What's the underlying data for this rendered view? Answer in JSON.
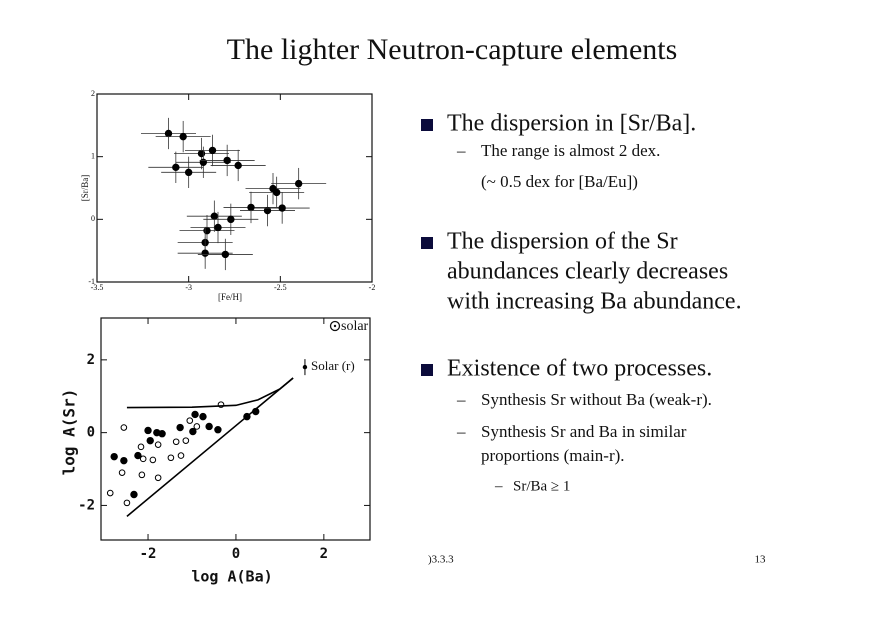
{
  "slide": {
    "title": "The lighter Neutron-capture elements",
    "bullets": [
      {
        "lines": [
          "The dispersion in [Sr/Ba]."
        ],
        "subs": [
          {
            "lines": [
              "The range is almost 2 dex.",
              "(~ 0.5 dex for [Ba/Eu])"
            ]
          }
        ]
      },
      {
        "lines": [
          "The dispersion of the Sr",
          "abundances clearly decreases",
          "with increasing Ba abundance."
        ]
      },
      {
        "lines": [
          "Existence of two processes."
        ],
        "subs": [
          {
            "lines": [
              "Synthesis Sr without Ba (weak-r)."
            ]
          },
          {
            "lines": [
              "Synthesis Sr and Ba in similar",
              "proportions (main-r)."
            ],
            "subs": [
              {
                "lines": [
                  "Sr/Ba ≥ 1"
                ]
              }
            ]
          }
        ]
      }
    ],
    "footer": {
      "date": ")3.3.3",
      "page": "13"
    }
  },
  "chart_data": [
    {
      "type": "scatter",
      "xlabel": "[Fe/H]",
      "ylabel": "[Sr/Ba]",
      "xlim": [
        -3.5,
        -2
      ],
      "ylim": [
        -1,
        2
      ],
      "xticks": [
        -3.5,
        -3,
        -2.5,
        -2
      ],
      "yticks": [
        -1,
        0,
        1,
        2
      ],
      "xerr": 0.15,
      "yerr": 0.25,
      "series": [
        {
          "color": "#000000",
          "style": "filled",
          "x": [
            -3.11,
            -3.03,
            -2.93,
            -3.07,
            -3.0,
            -2.92,
            -2.87,
            -2.79,
            -2.73,
            -2.54,
            -2.52,
            -2.4,
            -2.66,
            -2.57,
            -2.49,
            -2.86,
            -2.9,
            -2.84,
            -2.77,
            -2.91,
            -2.91,
            -2.8
          ],
          "y": [
            1.37,
            1.32,
            1.05,
            0.83,
            0.75,
            0.91,
            1.1,
            0.94,
            0.86,
            0.49,
            0.43,
            0.57,
            0.19,
            0.14,
            0.18,
            0.05,
            -0.18,
            -0.13,
            0.0,
            -0.37,
            -0.54,
            -0.56
          ]
        }
      ]
    },
    {
      "type": "scatter",
      "xlabel": "log A(Ba)",
      "ylabel": "log A(Sr)",
      "xlim": [
        -3.07,
        3.05
      ],
      "ylim": [
        -2.95,
        3.15
      ],
      "xticks": [
        -2,
        0,
        2
      ],
      "yticks": [
        -2,
        0,
        2
      ],
      "annotations": [
        "Solar (r)",
        "solar"
      ],
      "series": [
        {
          "color": "#000000",
          "style": "filled",
          "x": [
            -2.77,
            -2.55,
            -2.23,
            -2.0,
            -1.8,
            -1.68,
            -1.95,
            -1.27,
            -0.98,
            -0.75,
            -0.61,
            -0.41,
            0.25,
            0.45,
            -2.32,
            -0.93
          ],
          "y": [
            -0.66,
            -0.77,
            -0.63,
            0.06,
            0.0,
            -0.03,
            -0.22,
            0.14,
            0.03,
            0.44,
            0.17,
            0.08,
            0.44,
            0.58,
            -1.7,
            0.5
          ]
        },
        {
          "color": "#000000",
          "style": "open",
          "x": [
            -2.55,
            -2.16,
            -1.89,
            -2.11,
            -1.77,
            -1.36,
            -1.14,
            -1.48,
            -1.25,
            -2.59,
            -2.14,
            -1.77,
            -2.86,
            -2.48,
            -1.05,
            -0.34,
            -0.89
          ],
          "y": [
            0.14,
            -0.39,
            -0.75,
            -0.72,
            -0.33,
            -0.25,
            -0.22,
            -0.69,
            -0.63,
            -1.1,
            -1.16,
            -1.24,
            -1.66,
            -1.93,
            0.33,
            0.77,
            0.17
          ]
        },
        {
          "color": "#000000",
          "style": "line",
          "x": [
            -2.48,
            -1,
            0,
            0.5,
            1,
            1.3
          ],
          "y": [
            0.69,
            0.7,
            0.75,
            0.9,
            1.2,
            1.5
          ]
        },
        {
          "color": "#000000",
          "style": "line",
          "x": [
            -2.48,
            1.3
          ],
          "y": [
            -2.3,
            1.5
          ]
        },
        {
          "color": "#000000",
          "style": "errpoint",
          "x": [
            1.57
          ],
          "y": [
            1.8
          ],
          "yerr": 0.22
        }
      ]
    }
  ]
}
